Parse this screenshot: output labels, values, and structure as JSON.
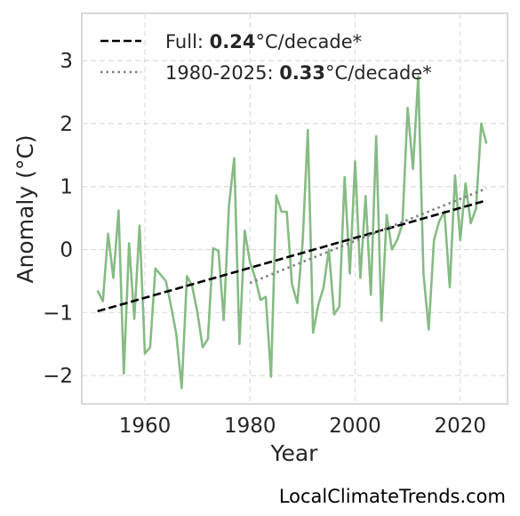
{
  "chart_data": {
    "type": "line",
    "title": "",
    "xlabel": "Year",
    "ylabel": "Anomaly (°C)",
    "xlim": [
      1948,
      2029
    ],
    "ylim": [
      -2.45,
      3.75
    ],
    "xticks": [
      1960,
      1980,
      2000,
      2020
    ],
    "xtick_labels": [
      "1960",
      "1980",
      "2000",
      "2020"
    ],
    "yticks": [
      -2,
      -1,
      0,
      1,
      2,
      3
    ],
    "ytick_labels": [
      "−2",
      "−1",
      "0",
      "1",
      "2",
      "3"
    ],
    "grid": true,
    "legend_position": "top-left",
    "series": [
      {
        "kind": "observed",
        "color": "#86bb84",
        "x": [
          1951,
          1952,
          1953,
          1954,
          1955,
          1956,
          1957,
          1958,
          1959,
          1960,
          1961,
          1962,
          1963,
          1964,
          1965,
          1966,
          1967,
          1968,
          1969,
          1970,
          1971,
          1972,
          1973,
          1974,
          1975,
          1976,
          1977,
          1978,
          1979,
          1980,
          1981,
          1982,
          1983,
          1984,
          1985,
          1986,
          1987,
          1988,
          1989,
          1990,
          1991,
          1992,
          1993,
          1994,
          1995,
          1996,
          1997,
          1998,
          1999,
          2000,
          2001,
          2002,
          2003,
          2004,
          2005,
          2006,
          2007,
          2008,
          2009,
          2010,
          2011,
          2012,
          2013,
          2014,
          2015,
          2016,
          2017,
          2018,
          2019,
          2020,
          2021,
          2022,
          2023,
          2024,
          2025
        ],
        "y": [
          -0.65,
          -0.82,
          0.25,
          -0.45,
          0.62,
          -1.97,
          0.1,
          -1.1,
          0.38,
          -1.65,
          -1.55,
          -0.3,
          -0.4,
          -0.5,
          -0.9,
          -1.35,
          -2.2,
          -0.42,
          -0.58,
          -1.0,
          -1.55,
          -1.42,
          0.02,
          -0.02,
          -1.12,
          0.7,
          1.45,
          -1.5,
          0.3,
          -0.2,
          -0.45,
          -0.8,
          -0.75,
          -2.02,
          0.86,
          0.6,
          0.6,
          -0.55,
          -0.85,
          0.1,
          1.9,
          -1.32,
          -0.88,
          -0.6,
          0.0,
          -1.03,
          -0.9,
          1.15,
          -0.38,
          1.4,
          -0.45,
          0.85,
          -0.72,
          1.8,
          -1.13,
          0.55,
          0.0,
          0.15,
          0.4,
          2.25,
          1.28,
          2.75,
          -0.38,
          -1.27,
          0.15,
          0.45,
          0.6,
          -0.6,
          1.18,
          0.15,
          1.05,
          0.42,
          0.65,
          2.0,
          1.68
        ]
      },
      {
        "kind": "trend",
        "name": "Full",
        "value": "0.24",
        "unit": "°C/decade*",
        "color": "#000000",
        "dash": "dashed",
        "x": [
          1951,
          2025
        ],
        "y": [
          -0.98,
          0.78
        ]
      },
      {
        "kind": "trend",
        "name": "1980-2025",
        "value": "0.33",
        "unit": "°C/decade*",
        "color": "#808080",
        "dash": "dotted",
        "x": [
          1980,
          2025
        ],
        "y": [
          -0.53,
          0.97
        ]
      }
    ]
  },
  "legend": {
    "full_prefix": "Full: ",
    "full_value": "0.24",
    "full_suffix": "°C/decade*",
    "recent_prefix": "1980-2025: ",
    "recent_value": "0.33",
    "recent_suffix": "°C/decade*"
  },
  "footer": {
    "credit": "LocalClimateTrends.com"
  }
}
